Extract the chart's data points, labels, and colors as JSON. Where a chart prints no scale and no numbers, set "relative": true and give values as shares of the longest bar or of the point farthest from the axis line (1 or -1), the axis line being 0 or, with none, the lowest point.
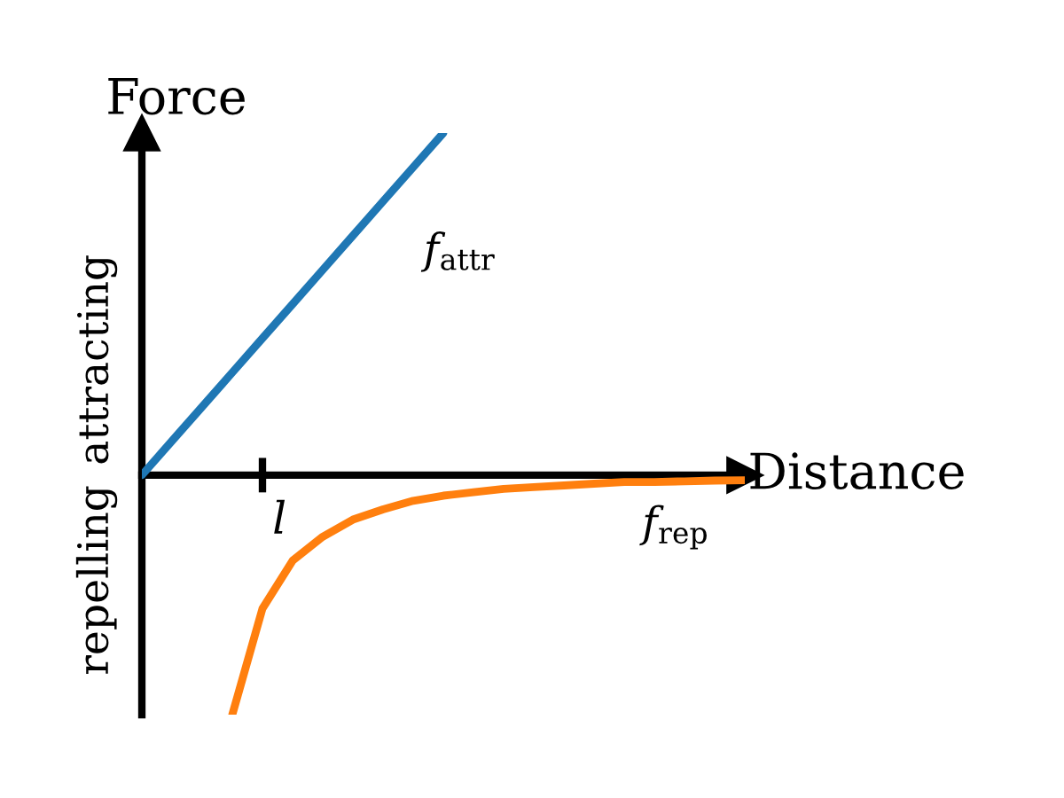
{
  "chart_data": {
    "type": "line",
    "relative": true,
    "xlabel": "Distance",
    "ylabel": "Force",
    "categories": [
      null,
      null,
      null,
      null,
      null,
      null,
      null,
      null,
      null,
      null,
      null,
      null,
      null,
      null,
      null,
      null,
      null,
      null,
      null,
      null,
      null
    ],
    "annotations": [
      "attracting",
      "repelling",
      "l"
    ],
    "marker": "none",
    "line_style": "solid",
    "series": [
      {
        "name": "f$_{attr}$",
        "color": "#1f77b4",
        "values": [
          0,
          0.1,
          0.2,
          0.3,
          0.4,
          0.5,
          0.6,
          0.7,
          0.8,
          0.9,
          1.0,
          null,
          null,
          null,
          null,
          null,
          null,
          null,
          null,
          null,
          null
        ]
      },
      {
        "name": "f$_{rep}$",
        "color": "#ff7f0e",
        "values": [
          null,
          null,
          null,
          -0.7,
          -0.39,
          -0.25,
          -0.18,
          -0.13,
          -0.1,
          -0.075,
          -0.06,
          -0.05,
          -0.04,
          -0.035,
          -0.03,
          -0.025,
          -0.02,
          -0.02,
          -0.018,
          -0.016,
          -0.015
        ]
      }
    ]
  }
}
